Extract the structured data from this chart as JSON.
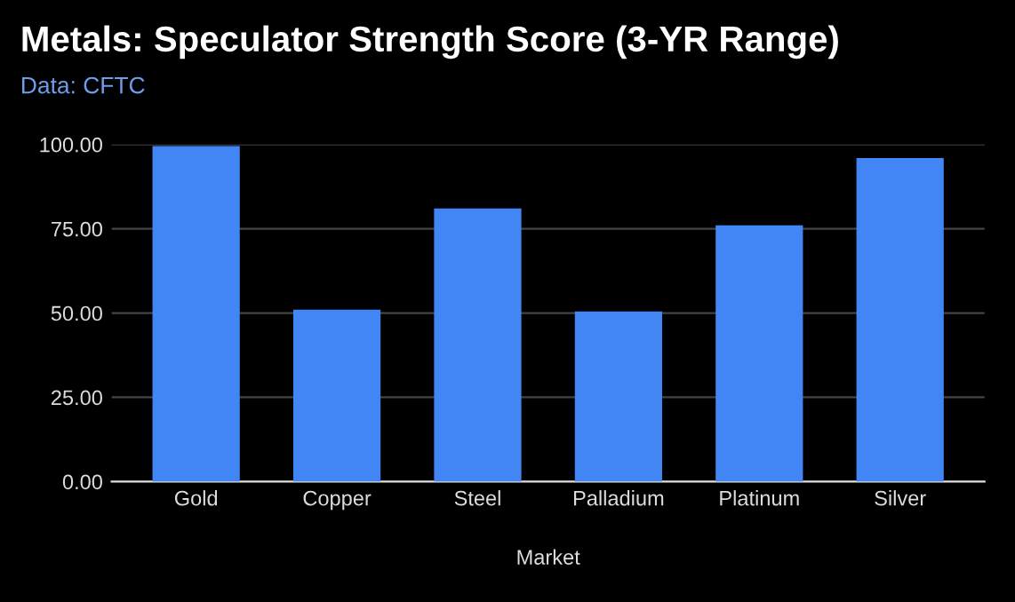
{
  "chart_data": {
    "type": "bar",
    "title": "Metals: Speculator Strength Score (3-YR Range)",
    "subtitle": "Data: CFTC",
    "xlabel": "Market",
    "categories": [
      "Gold",
      "Copper",
      "Steel",
      "Palladium",
      "Platinum",
      "Silver"
    ],
    "values": [
      99.5,
      51,
      81,
      50.5,
      76,
      96
    ],
    "color": "#4285f4",
    "ylim": [
      0,
      100
    ],
    "yticks": [
      {
        "value": 0,
        "label": "0.00"
      },
      {
        "value": 25,
        "label": "25.00"
      },
      {
        "value": 50,
        "label": "50.00"
      },
      {
        "value": 75,
        "label": "75.00"
      },
      {
        "value": 100,
        "label": "100.00"
      }
    ],
    "grid": "y"
  }
}
